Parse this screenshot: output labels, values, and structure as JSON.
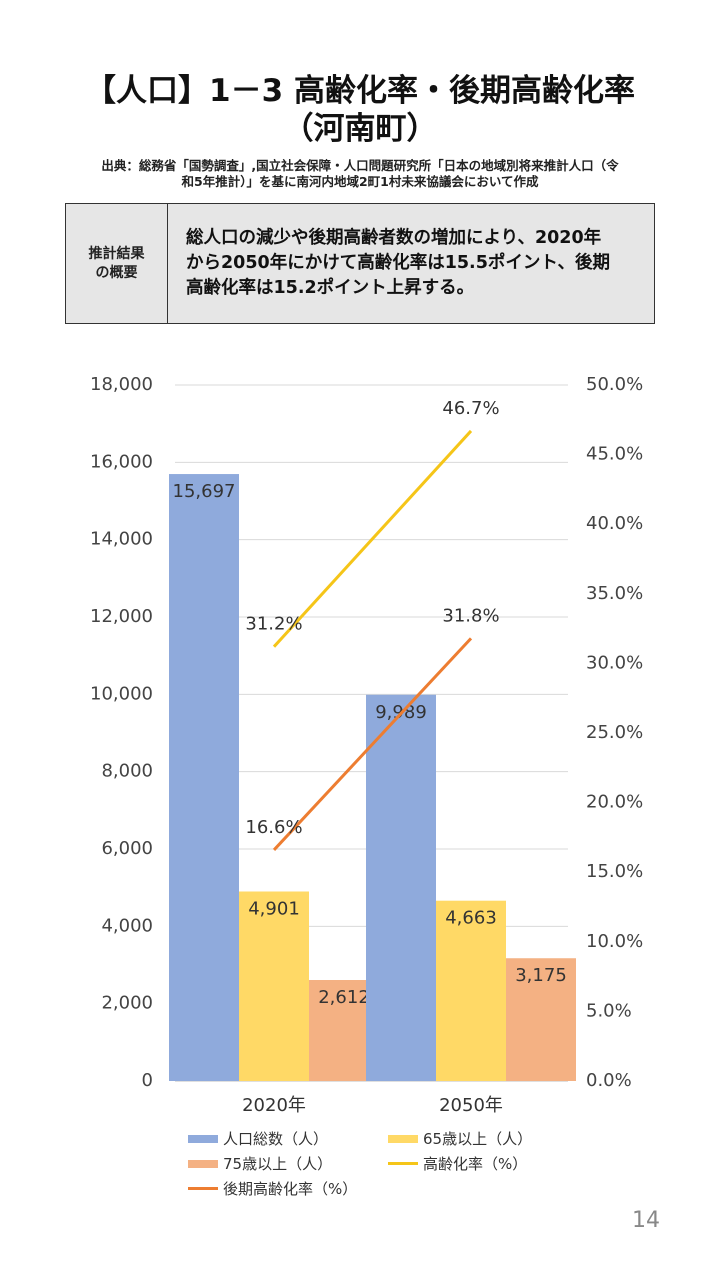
{
  "header": {
    "title_line1": "【人口】1－3 高齢化率・後期高齢化率",
    "title_line2": "（河南町）",
    "source_line1": "出典：総務省「国勢調査」,国立社会保障・人口問題研究所「日本の地域別将来推計人口（令",
    "source_line2": "和5年推計）」を基に南河内地域2町1村未来協議会において作成"
  },
  "summary": {
    "label_line1": "推計結果",
    "label_line2": "の概要",
    "text_line1": "総人口の減少や後期高齢者数の増加により、2020年",
    "text_line2": "から2050年にかけて高齢化率は15.5ポイント、後期",
    "text_line3": "高齢化率は15.2ポイント上昇する。"
  },
  "chart_data": {
    "type": "bar",
    "categories": [
      "2020年",
      "2050年"
    ],
    "series": [
      {
        "name": "人口総数（人）",
        "kind": "bar",
        "axis": "left",
        "color": "#8faadc",
        "values": [
          15697,
          9989
        ],
        "labels": [
          "15,697",
          "9,989"
        ]
      },
      {
        "name": "65歳以上（人）",
        "kind": "bar",
        "axis": "left",
        "color": "#ffd966",
        "values": [
          4901,
          4663
        ],
        "labels": [
          "4,901",
          "4,663"
        ]
      },
      {
        "name": "75歳以上（人）",
        "kind": "bar",
        "axis": "left",
        "color": "#f4b183",
        "values": [
          2612,
          3175
        ],
        "labels": [
          "2,612",
          "3,175"
        ]
      },
      {
        "name": "高齢化率（%）",
        "kind": "line",
        "axis": "right",
        "color": "#f5c518",
        "values": [
          31.2,
          46.7
        ],
        "labels": [
          "31.2%",
          "46.7%"
        ]
      },
      {
        "name": "後期高齢化率（%）",
        "kind": "line",
        "axis": "right",
        "color": "#ed7d31",
        "values": [
          16.6,
          31.8
        ],
        "labels": [
          "16.6%",
          "31.8%"
        ]
      }
    ],
    "y_left": {
      "min": 0,
      "max": 18000,
      "step": 2000,
      "ticks": [
        "0",
        "2,000",
        "4,000",
        "6,000",
        "8,000",
        "10,000",
        "12,000",
        "14,000",
        "16,000",
        "18,000"
      ]
    },
    "y_right": {
      "min": 0,
      "max": 50,
      "step": 5,
      "ticks": [
        "0.0%",
        "5.0%",
        "10.0%",
        "15.0%",
        "20.0%",
        "25.0%",
        "30.0%",
        "35.0%",
        "40.0%",
        "45.0%",
        "50.0%"
      ]
    },
    "grid": true,
    "legend": "bottom"
  },
  "footer": {
    "page_number": "14"
  }
}
